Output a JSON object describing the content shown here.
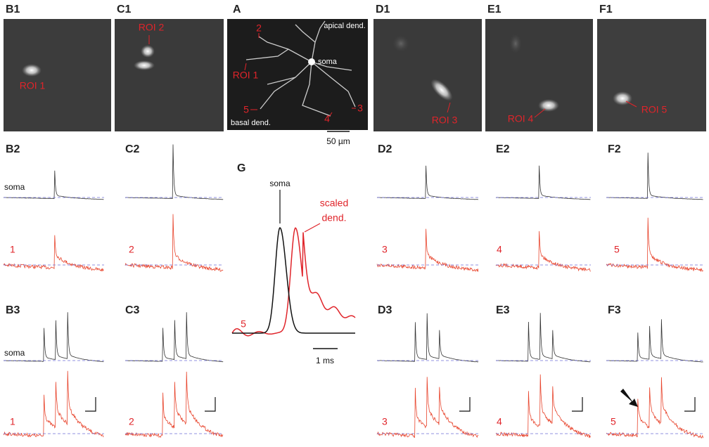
{
  "panels": {
    "A": {
      "label": "A",
      "roi_labels": [
        "2",
        "ROI 1",
        "5",
        "4",
        "3"
      ],
      "apical": "apical dend.",
      "soma": "soma",
      "basal": "basal dend.",
      "scale_bar": "50 µm"
    },
    "B1": {
      "label": "B1",
      "roi": "ROI 1"
    },
    "C1": {
      "label": "C1",
      "roi": "ROI 2"
    },
    "D1": {
      "label": "D1",
      "roi": "ROI 3"
    },
    "E1": {
      "label": "E1",
      "roi": "ROI 4"
    },
    "F1": {
      "label": "F1",
      "roi": "ROI 5"
    },
    "B2": {
      "label": "B2",
      "soma": "soma",
      "roi_number": "1"
    },
    "C2": {
      "label": "C2",
      "roi_number": "2"
    },
    "D2": {
      "label": "D2",
      "roi_number": "3"
    },
    "E2": {
      "label": "E2",
      "roi_number": "4"
    },
    "F2": {
      "label": "F2",
      "roi_number": "5"
    },
    "B3": {
      "label": "B3",
      "soma": "soma",
      "roi_number": "1"
    },
    "C3": {
      "label": "C3",
      "roi_number": "2"
    },
    "D3": {
      "label": "D3",
      "roi_number": "3"
    },
    "E3": {
      "label": "E3",
      "roi_number": "4"
    },
    "F3": {
      "label": "F3",
      "roi_number": "5"
    },
    "G": {
      "label": "G",
      "soma": "soma",
      "dend_lines": [
        "scaled",
        "dend."
      ],
      "roi_number": "5",
      "scale_bar": "1 ms"
    }
  }
}
